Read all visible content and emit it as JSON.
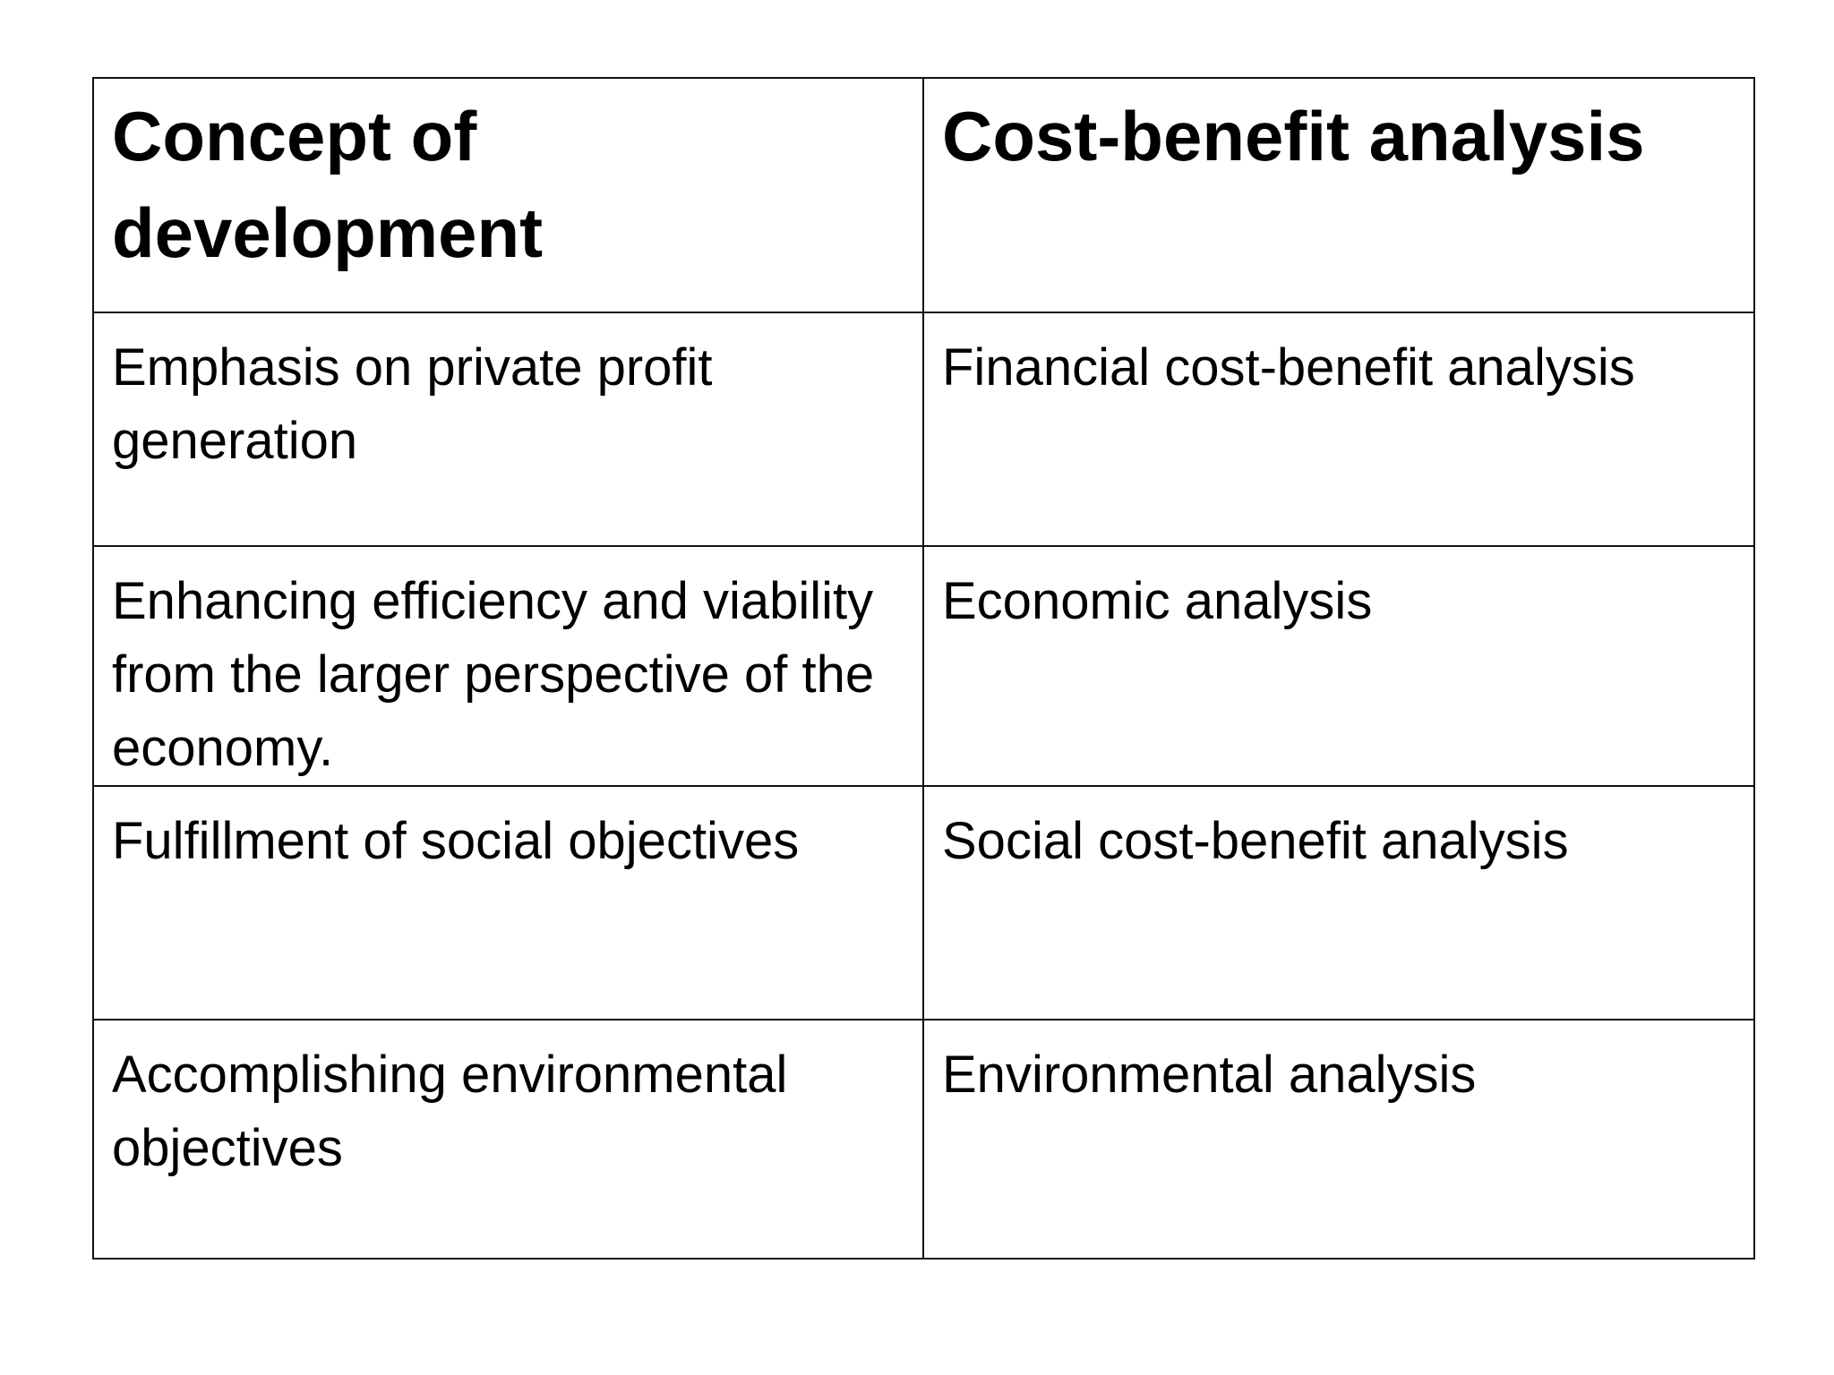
{
  "table": {
    "headers": [
      "Concept of development",
      "Cost-benefit analysis"
    ],
    "rows": [
      [
        "Emphasis on private profit generation",
        "Financial cost-benefit analysis"
      ],
      [
        "Enhancing efficiency and viability from the larger perspective of the economy.",
        "Economic analysis"
      ],
      [
        "Fulfillment of social objectives",
        "Social cost-benefit analysis"
      ],
      [
        "Accomplishing environmental objectives",
        "Environmental analysis"
      ]
    ]
  },
  "colors": {
    "border": "#111111",
    "text": "#000000",
    "background": "#ffffff"
  }
}
